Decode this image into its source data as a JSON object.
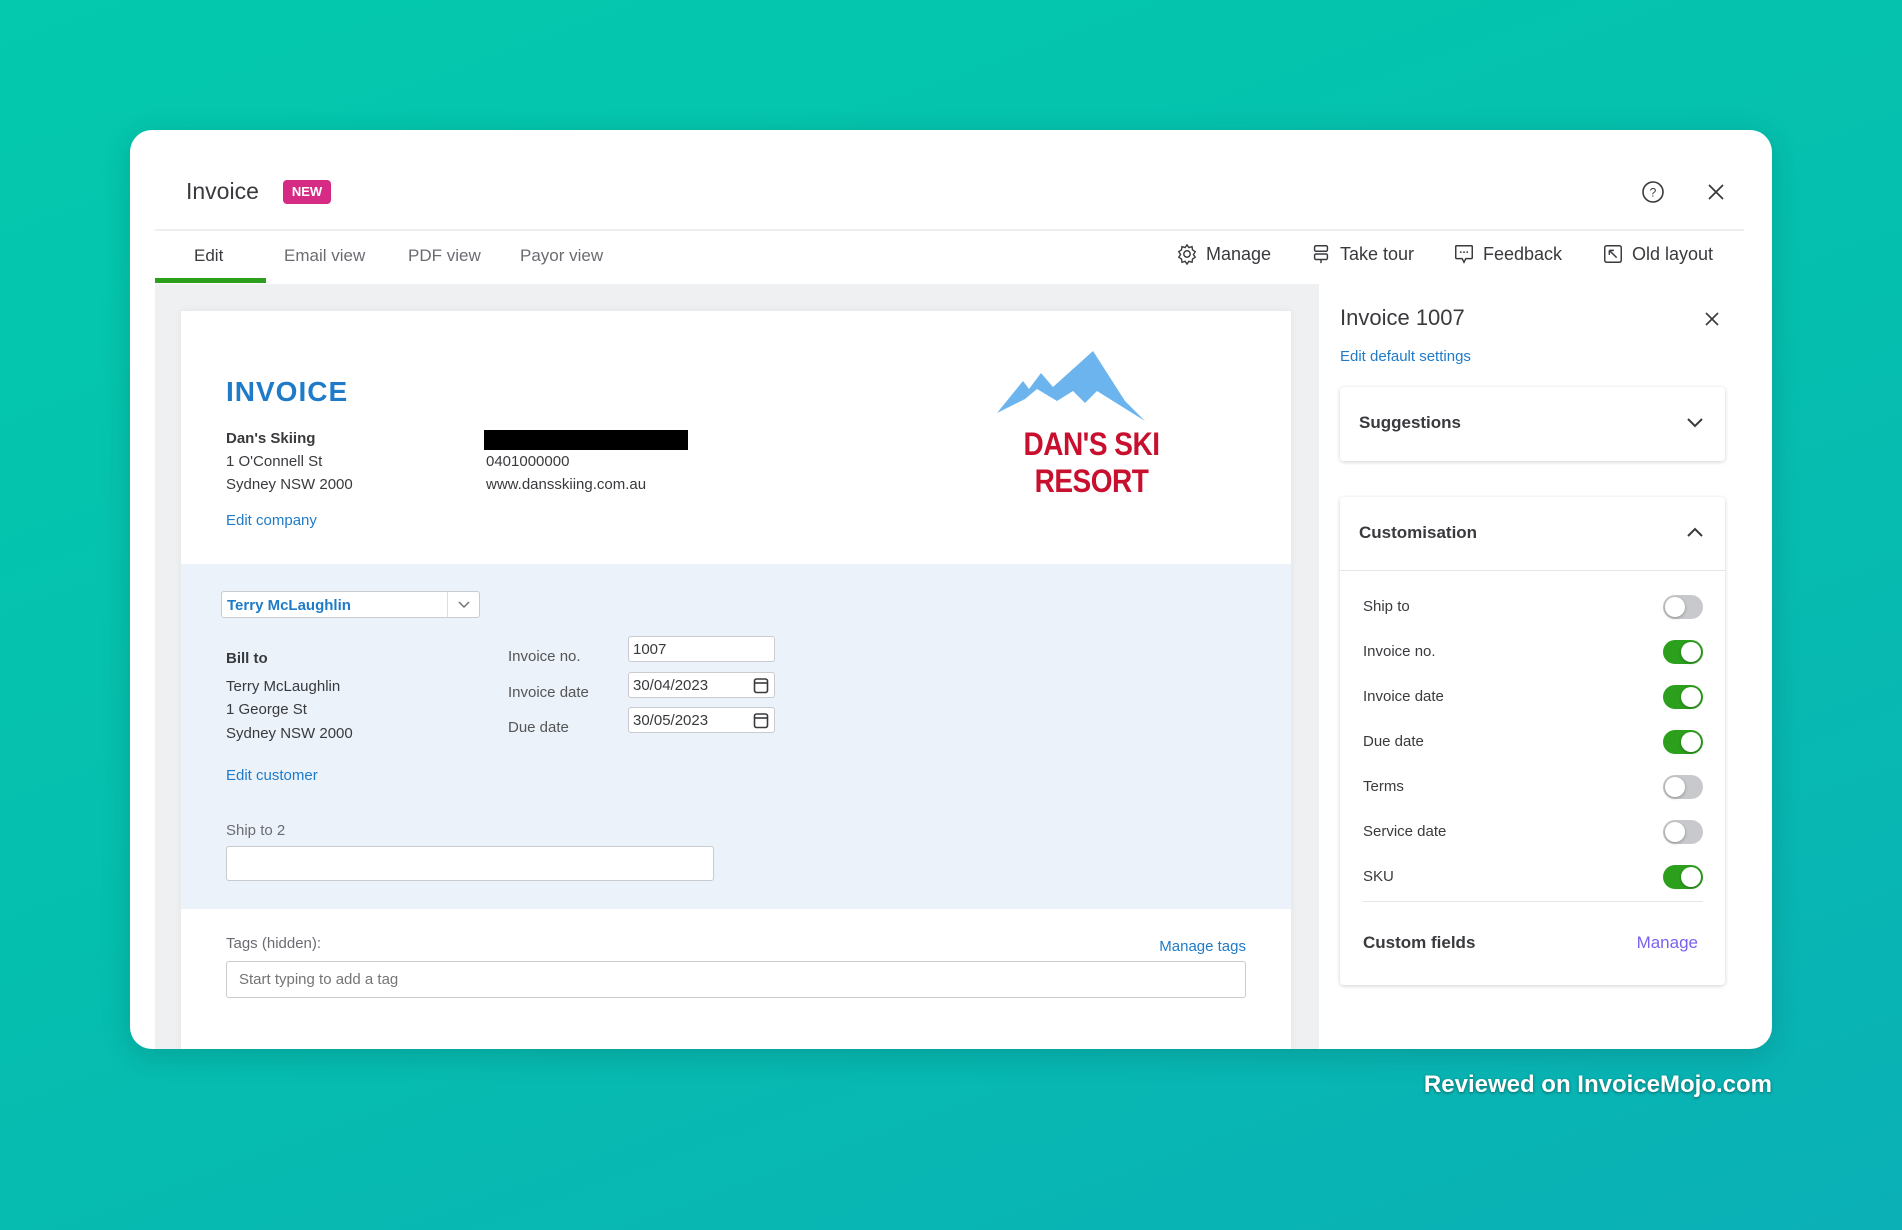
{
  "header": {
    "title": "Invoice",
    "badge": "NEW",
    "help_icon": "help-circle-icon",
    "close_icon": "close-icon"
  },
  "tabs": [
    {
      "label": "Edit",
      "active": true
    },
    {
      "label": "Email view"
    },
    {
      "label": "PDF view"
    },
    {
      "label": "Payor view"
    }
  ],
  "toolbar": {
    "manage": "Manage",
    "take_tour": "Take tour",
    "feedback": "Feedback",
    "old_layout": "Old layout"
  },
  "invoice": {
    "heading": "INVOICE",
    "company": {
      "name": "Dan's Skiing",
      "address1": "1 O'Connell St",
      "address2": "Sydney NSW 2000",
      "phone": "0401000000",
      "website": "www.dansskiing.com.au",
      "edit_link": "Edit company"
    },
    "logo_text": "DAN'S SKI RESORT",
    "customer_select": "Terry McLaughlin",
    "bill_to": {
      "label": "Bill to",
      "name": "Terry McLaughlin",
      "address1": "1 George St",
      "address2": "Sydney NSW 2000",
      "edit_link": "Edit customer"
    },
    "fields": {
      "invoice_no_label": "Invoice no.",
      "invoice_no": "1007",
      "invoice_date_label": "Invoice date",
      "invoice_date": "30/04/2023",
      "due_date_label": "Due date",
      "due_date": "30/05/2023"
    },
    "ship_to": {
      "label": "Ship to 2",
      "value": ""
    },
    "tags": {
      "label": "Tags (hidden):",
      "manage_link": "Manage tags",
      "placeholder": "Start typing to add a tag"
    }
  },
  "panel": {
    "title": "Invoice 1007",
    "edit_defaults": "Edit default settings",
    "suggestions": "Suggestions",
    "customisation": "Customisation",
    "toggles": [
      {
        "label": "Ship to",
        "on": false
      },
      {
        "label": "Invoice no.",
        "on": true
      },
      {
        "label": "Invoice date",
        "on": true
      },
      {
        "label": "Due date",
        "on": true
      },
      {
        "label": "Terms",
        "on": false
      },
      {
        "label": "Service date",
        "on": false
      },
      {
        "label": "SKU",
        "on": true
      }
    ],
    "custom_fields": "Custom fields",
    "custom_fields_manage": "Manage"
  },
  "colors": {
    "accent_green": "#2ca01c",
    "link_blue": "#1f7bc8",
    "badge_pink": "#d52b85",
    "manage_purple": "#7a62f0"
  },
  "watermark": "Reviewed on InvoiceMojo.com"
}
